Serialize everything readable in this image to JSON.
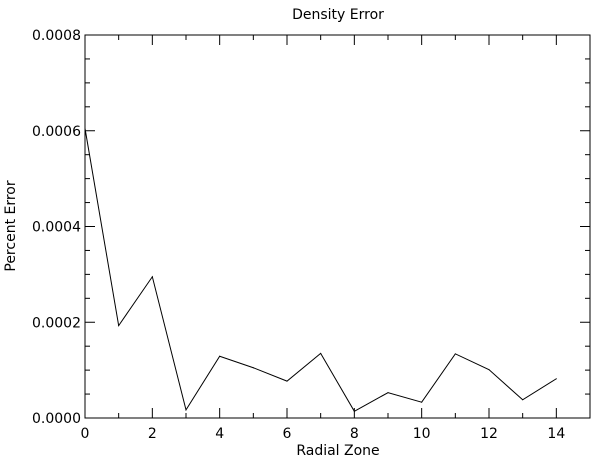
{
  "chart_data": {
    "type": "line",
    "title": "Density Error",
    "xlabel": "Radial Zone",
    "ylabel": "Percent Error",
    "xlim": [
      0,
      15
    ],
    "ylim": [
      0,
      0.0008
    ],
    "xticks": [
      0,
      2,
      4,
      6,
      8,
      10,
      12,
      14
    ],
    "xtick_labels": [
      "0",
      "2",
      "4",
      "6",
      "8",
      "10",
      "12",
      "14"
    ],
    "yticks": [
      0,
      0.0002,
      0.0004,
      0.0006,
      0.0008
    ],
    "ytick_labels": [
      "0.0000",
      "0.0002",
      "0.0004",
      "0.0006",
      "0.0008"
    ],
    "grid": false,
    "series": [
      {
        "x": [
          0,
          1,
          2,
          3,
          4,
          5,
          6,
          7,
          8,
          9,
          10,
          11,
          12,
          13,
          14
        ],
        "y": [
          0.000605,
          0.000193,
          0.000295,
          1.7e-05,
          0.000129,
          0.000105,
          7.7e-05,
          0.000135,
          1.4e-05,
          5.3e-05,
          3.3e-05,
          0.000134,
          0.000101,
          3.8e-05,
          8.2e-05
        ]
      }
    ]
  }
}
